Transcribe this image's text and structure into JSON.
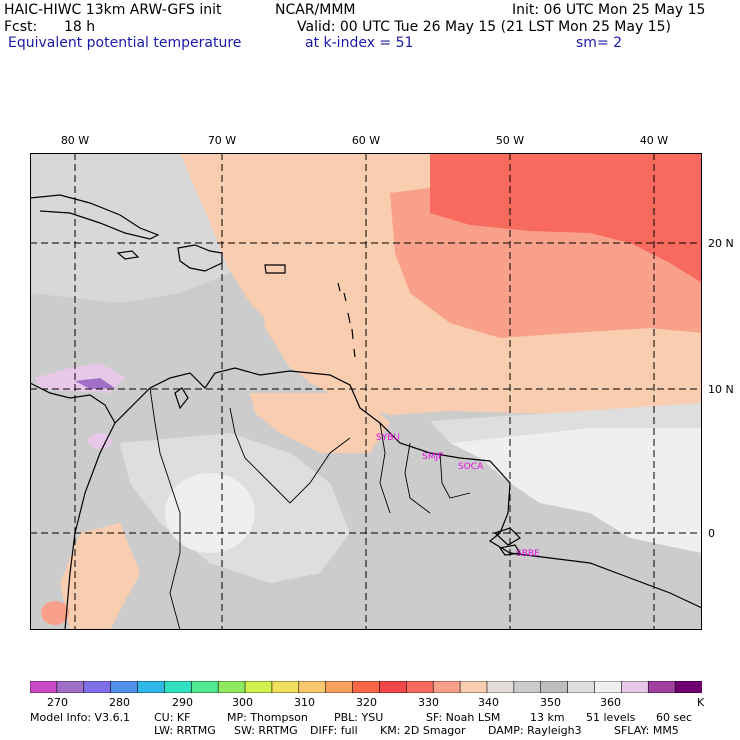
{
  "header": {
    "model_title": "HAIC-HIWC 13km ARW-GFS init",
    "org": "NCAR/MMM",
    "init": "Init: 06 UTC Mon 25 May 15",
    "fcst_label": "Fcst:",
    "fcst_value": "18 h",
    "valid": "Valid: 00 UTC Tue 26 May 15 (21 LST Mon 25 May 15)",
    "field": "Equivalent potential temperature",
    "level": "at k-index =  51",
    "smooth": "sm= 2"
  },
  "map": {
    "lon_labels": [
      "80 W",
      "70 W",
      "60 W",
      "50 W",
      "40 W"
    ],
    "lat_labels": [
      "20 N",
      "10 N",
      "0"
    ],
    "stations": [
      "SYBU",
      "SMJP",
      "SOCA",
      "SBBE"
    ]
  },
  "colorbar": {
    "colors": [
      "#c84cc8",
      "#a070c8",
      "#8070e8",
      "#5090e8",
      "#30b8e8",
      "#30e0c0",
      "#50e890",
      "#90e860",
      "#d0f050",
      "#f0e060",
      "#f8c870",
      "#f8a060",
      "#f86848",
      "#f04848",
      "#f86a5e",
      "#f8a08a",
      "#f8cdb0",
      "#e4dcd8",
      "#cccccc",
      "#bebebe",
      "#dedede",
      "#efefef",
      "#e8c8e8",
      "#a040a0",
      "#6e0070"
    ],
    "labels": [
      "270",
      "280",
      "290",
      "300",
      "310",
      "320",
      "330",
      "340",
      "350",
      "360"
    ],
    "unit": "K"
  },
  "footer": {
    "model_info": "Model Info: V3.6.1",
    "cu": "CU: KF",
    "mp": "MP: Thompson",
    "pbl": "PBL: YSU",
    "sf": "SF: Noah LSM",
    "res": "13 km",
    "levels": "51 levels",
    "dt": "60 sec",
    "lw": "LW: RRTMG",
    "sw": "SW: RRTMG",
    "diff": "DIFF: full",
    "km": "KM: 2D Smagor",
    "damp": "DAMP: Rayleigh3",
    "sflay": "SFLAY: MM5"
  }
}
